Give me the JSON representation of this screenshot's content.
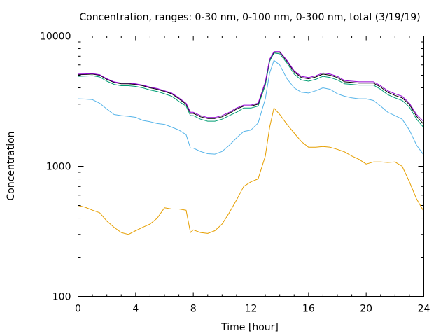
{
  "chart_data": {
    "type": "line",
    "title": "Concentration, ranges: 0-30 nm, 0-100 nm, 0-300 nm, total (3/19/19)",
    "xlabel": "Time [hour]",
    "ylabel": "Concentration",
    "xlim": [
      0,
      24
    ],
    "ylim": [
      100,
      10000
    ],
    "y_scale": "log",
    "grid": false,
    "legend": "none",
    "x_ticks": [
      0,
      4,
      8,
      12,
      16,
      20,
      24
    ],
    "x_tick_labels": [
      "0",
      "4",
      "8",
      "12",
      "16",
      "20",
      "24"
    ],
    "y_ticks": [
      100,
      1000,
      10000
    ],
    "y_tick_labels": [
      "100",
      "1000",
      "10000"
    ],
    "x": [
      0,
      0.5,
      1,
      1.5,
      2,
      2.5,
      3,
      3.5,
      4,
      4.5,
      5,
      5.5,
      6,
      6.5,
      7,
      7.5,
      7.8,
      8,
      8.5,
      9,
      9.5,
      10,
      10.5,
      11,
      11.5,
      12,
      12.5,
      13,
      13.3,
      13.6,
      14,
      14.5,
      15,
      15.5,
      16,
      16.5,
      17,
      17.5,
      18,
      18.5,
      19,
      19.5,
      20,
      20.5,
      21,
      21.5,
      22,
      22.5,
      23,
      23.5,
      24
    ],
    "series": [
      {
        "color": "#e69f00",
        "values": [
          500,
          485,
          460,
          440,
          380,
          340,
          310,
          300,
          320,
          340,
          360,
          400,
          480,
          470,
          470,
          460,
          310,
          325,
          310,
          305,
          320,
          360,
          440,
          550,
          700,
          760,
          800,
          1200,
          2000,
          2800,
          2500,
          2100,
          1800,
          1550,
          1400,
          1400,
          1420,
          1400,
          1350,
          1290,
          1200,
          1130,
          1040,
          1080,
          1080,
          1070,
          1080,
          1000,
          760,
          560,
          450
        ]
      },
      {
        "color": "#56b4e9",
        "values": [
          3300,
          3280,
          3250,
          3050,
          2750,
          2500,
          2450,
          2420,
          2380,
          2250,
          2200,
          2130,
          2100,
          2000,
          1900,
          1750,
          1380,
          1380,
          1300,
          1250,
          1240,
          1300,
          1450,
          1650,
          1850,
          1900,
          2150,
          3300,
          5200,
          6500,
          6000,
          4700,
          4000,
          3700,
          3650,
          3800,
          4000,
          3900,
          3600,
          3450,
          3350,
          3300,
          3300,
          3200,
          2900,
          2600,
          2450,
          2300,
          1900,
          1450,
          1220
        ]
      },
      {
        "color": "#009e73",
        "values": [
          4900,
          4920,
          4950,
          4850,
          4500,
          4250,
          4150,
          4150,
          4100,
          4000,
          3850,
          3750,
          3600,
          3450,
          3150,
          2900,
          2450,
          2450,
          2300,
          2220,
          2220,
          2300,
          2450,
          2600,
          2800,
          2800,
          2900,
          4200,
          6400,
          7400,
          7300,
          6200,
          5100,
          4600,
          4500,
          4650,
          4900,
          4800,
          4600,
          4300,
          4250,
          4200,
          4200,
          4200,
          3900,
          3550,
          3350,
          3200,
          2850,
          2300,
          1980
        ]
      },
      {
        "color": "#000000",
        "values": [
          5050,
          5070,
          5100,
          5000,
          4650,
          4400,
          4300,
          4300,
          4250,
          4150,
          4000,
          3900,
          3750,
          3600,
          3300,
          3000,
          2550,
          2550,
          2400,
          2330,
          2330,
          2400,
          2550,
          2750,
          2900,
          2900,
          3000,
          4400,
          6600,
          7500,
          7500,
          6400,
          5300,
          4800,
          4700,
          4850,
          5100,
          5000,
          4800,
          4450,
          4400,
          4350,
          4350,
          4350,
          4050,
          3700,
          3500,
          3350,
          2980,
          2420,
          2100
        ]
      },
      {
        "color": "#9400d3",
        "values": [
          5100,
          5120,
          5150,
          5050,
          4700,
          4450,
          4350,
          4350,
          4300,
          4200,
          4050,
          3950,
          3800,
          3650,
          3350,
          3050,
          2600,
          2600,
          2450,
          2370,
          2370,
          2450,
          2600,
          2800,
          2950,
          2950,
          3050,
          4450,
          6650,
          7600,
          7600,
          6500,
          5400,
          4900,
          4800,
          4950,
          5200,
          5100,
          4900,
          4550,
          4500,
          4450,
          4450,
          4450,
          4150,
          3800,
          3600,
          3450,
          3050,
          2500,
          2200
        ]
      }
    ]
  }
}
